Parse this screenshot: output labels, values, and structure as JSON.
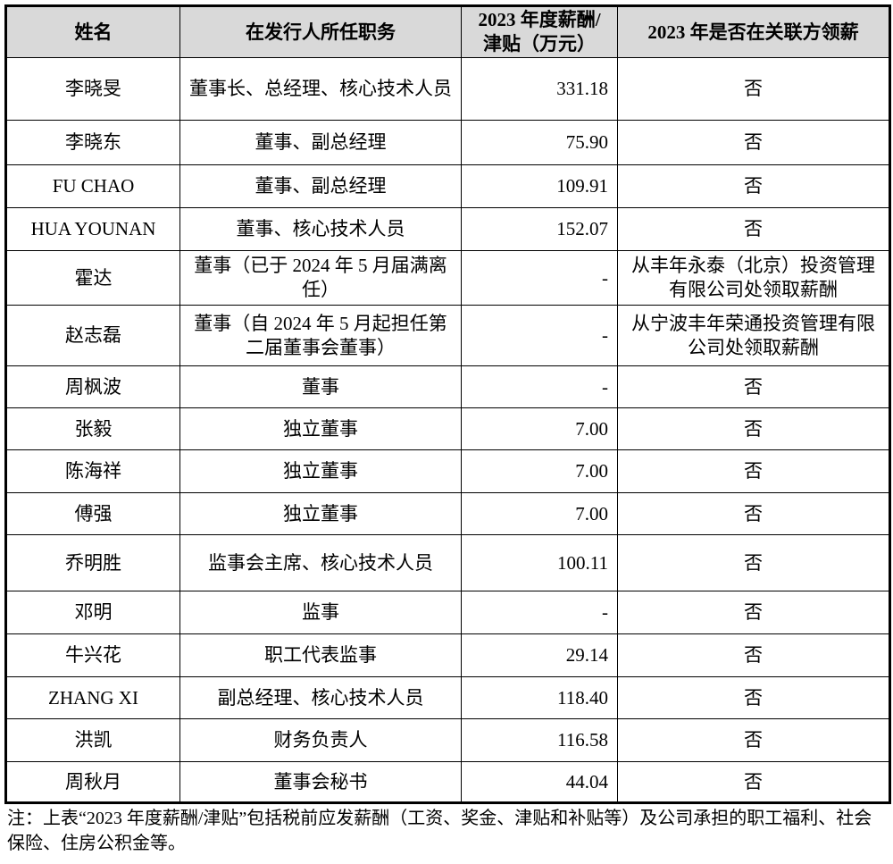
{
  "table": {
    "headers": [
      "姓名",
      "在发行人所任职务",
      "2023 年度薪酬/津贴（万元）",
      "2023 年是否在关联方领薪"
    ],
    "rows": [
      {
        "name": "李晓旻",
        "position": "董事长、总经理、核心技术人员",
        "salary": "331.18",
        "related": "否"
      },
      {
        "name": "李晓东",
        "position": "董事、副总经理",
        "salary": "75.90",
        "related": "否"
      },
      {
        "name": "FU CHAO",
        "position": "董事、副总经理",
        "salary": "109.91",
        "related": "否"
      },
      {
        "name": "HUA YOUNAN",
        "position": "董事、核心技术人员",
        "salary": "152.07",
        "related": "否"
      },
      {
        "name": "霍达",
        "position": "董事（已于 2024 年 5 月届满离任）",
        "salary": "-",
        "related": "从丰年永泰（北京）投资管理有限公司处领取薪酬"
      },
      {
        "name": "赵志磊",
        "position": "董事（自 2024 年 5 月起担任第二届董事会董事）",
        "salary": "-",
        "related": "从宁波丰年荣通投资管理有限公司处领取薪酬"
      },
      {
        "name": "周枫波",
        "position": "董事",
        "salary": "-",
        "related": "否"
      },
      {
        "name": "张毅",
        "position": "独立董事",
        "salary": "7.00",
        "related": "否"
      },
      {
        "name": "陈海祥",
        "position": "独立董事",
        "salary": "7.00",
        "related": "否"
      },
      {
        "name": "傅强",
        "position": "独立董事",
        "salary": "7.00",
        "related": "否"
      },
      {
        "name": "乔明胜",
        "position": "监事会主席、核心技术人员",
        "salary": "100.11",
        "related": "否"
      },
      {
        "name": "邓明",
        "position": "监事",
        "salary": "-",
        "related": "否"
      },
      {
        "name": "牛兴花",
        "position": "职工代表监事",
        "salary": "29.14",
        "related": "否"
      },
      {
        "name": "ZHANG XI",
        "position": "副总经理、核心技术人员",
        "salary": "118.40",
        "related": "否"
      },
      {
        "name": "洪凯",
        "position": "财务负责人",
        "salary": "116.58",
        "related": "否"
      },
      {
        "name": "周秋月",
        "position": "董事会秘书",
        "salary": "44.04",
        "related": "否"
      }
    ]
  },
  "note": "注：上表“2023 年度薪酬/津贴”包括税前应发薪酬（工资、奖金、津贴和补贴等）及公司承担的职工福利、社会保险、住房公积金等。"
}
